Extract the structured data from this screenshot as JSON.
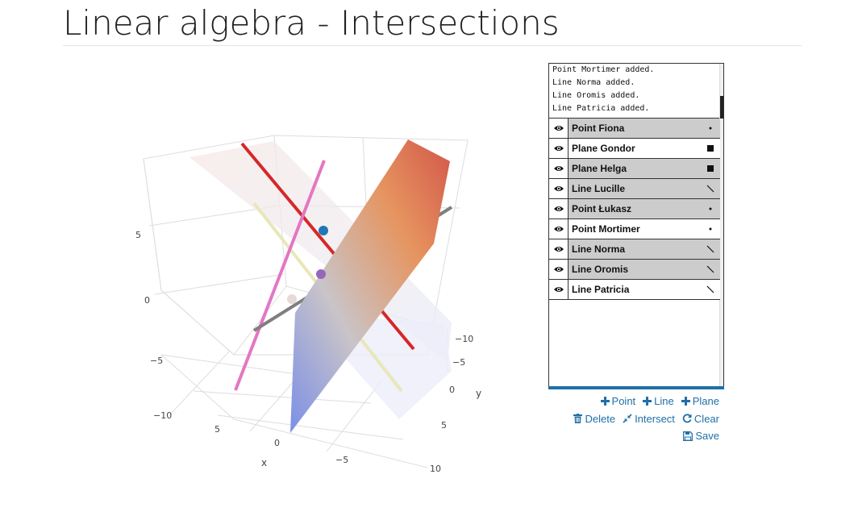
{
  "page": {
    "title": "Linear algebra - Intersections"
  },
  "plot": {
    "z_ticks": [
      "5",
      "0",
      "−5",
      "−10"
    ],
    "y_ticks": [
      "−10",
      "−5",
      "0",
      "5",
      "10"
    ],
    "x_ticks": [
      "5",
      "0",
      "−5"
    ],
    "x_title": "x",
    "y_title": "y",
    "colors": {
      "red_line": "#d62728",
      "pink_line": "#e377c2",
      "gray_line": "#7f7f7f",
      "olive_line": "#e8e7b8",
      "point_blue": "#1f77b4",
      "point_purple": "#9467bd",
      "point_light": "#e8d8d8",
      "plane_low": "#7b8fe6",
      "plane_high": "#d4634a"
    }
  },
  "log": {
    "lines": [
      "Point Mortimer added.",
      "Line Norma added.",
      "Line Oromis added.",
      "Line Patricia added."
    ]
  },
  "objects": [
    {
      "name": "Point Fiona",
      "type": "point",
      "shaded": true
    },
    {
      "name": "Plane Gondor",
      "type": "plane",
      "shaded": false
    },
    {
      "name": "Plane Helga",
      "type": "plane",
      "shaded": true
    },
    {
      "name": "Line Lucille",
      "type": "line",
      "shaded": true
    },
    {
      "name": "Point Łukasz",
      "type": "point",
      "shaded": true
    },
    {
      "name": "Point Mortimer",
      "type": "point",
      "shaded": false
    },
    {
      "name": "Line Norma",
      "type": "line",
      "shaded": true
    },
    {
      "name": "Line Oromis",
      "type": "line",
      "shaded": true
    },
    {
      "name": "Line Patricia",
      "type": "line",
      "shaded": false
    }
  ],
  "actions": {
    "add_point": "Point",
    "add_line": "Line",
    "add_plane": "Plane",
    "delete": "Delete",
    "intersect": "Intersect",
    "clear": "Clear",
    "save": "Save"
  },
  "accent_color": "#1f6fa8"
}
